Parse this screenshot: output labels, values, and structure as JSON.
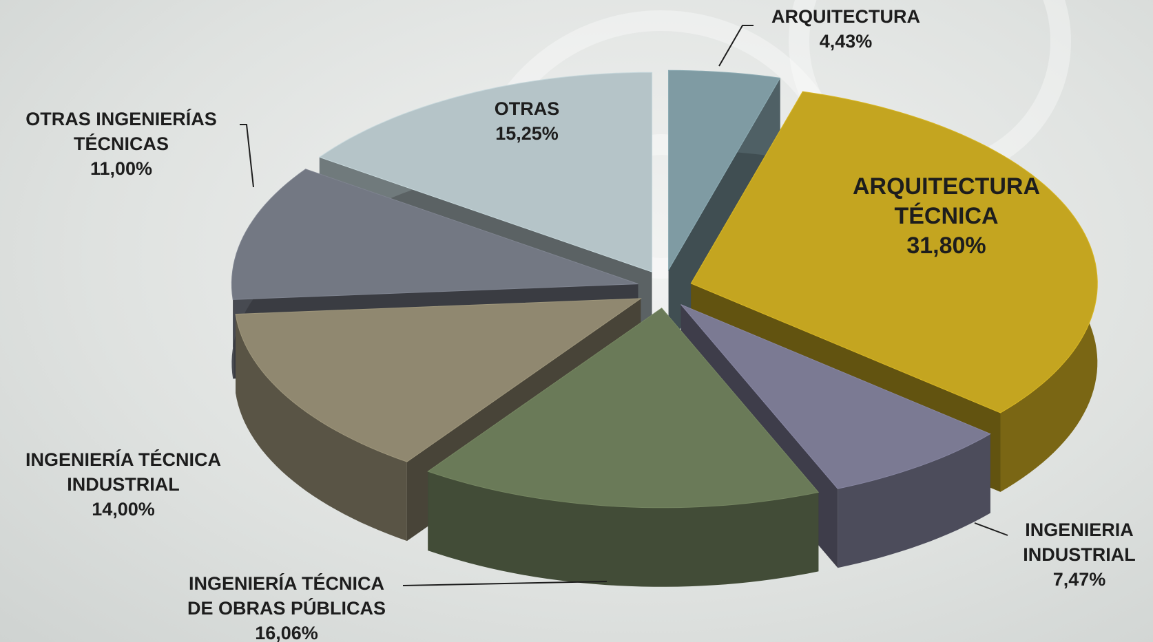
{
  "chart_data": {
    "type": "pie3d",
    "categories": [
      "ARQUITECTURA",
      "ARQUITECTURA\nTÉCNICA",
      "INGENIERIA\nINDUSTRIAL",
      "INGENIERÍA TÉCNICA\nDE OBRAS PÚBLICAS",
      "INGENIERÍA TÉCNICA\nINDUSTRIAL",
      "OTRAS INGENIERÍAS\nTÉCNICAS",
      "OTRAS"
    ],
    "values": [
      4.43,
      31.8,
      7.47,
      16.06,
      14.0,
      11.0,
      15.25
    ],
    "value_labels": [
      "4,43%",
      "31,80%",
      "7,47%",
      "16,06%",
      "14,00%",
      "11,00%",
      "15,25%"
    ],
    "colors": [
      "#7f9ba3",
      "#c4a520",
      "#7b7a93",
      "#6a7a58",
      "#908870",
      "#737883",
      "#b5c4c8"
    ]
  }
}
